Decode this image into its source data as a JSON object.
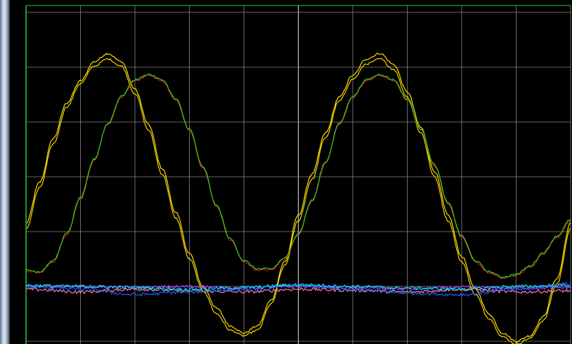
{
  "chart_data": {
    "type": "line",
    "title": "",
    "xlabel": "",
    "ylabel": "",
    "grid": true,
    "legend": "none",
    "xlim": [
      0,
      10
    ],
    "ylim": [
      0,
      6
    ],
    "colors": {
      "background": "#000000",
      "grid": "#8a8a8a",
      "zero_line": "#c8c8c8",
      "border": "#2ecc40"
    },
    "series": [
      {
        "color": "#ffe600",
        "values": [
          [
            0.0,
            2.15
          ],
          [
            0.25,
            2.9
          ],
          [
            0.5,
            3.7
          ],
          [
            0.75,
            4.35
          ],
          [
            1.0,
            4.75
          ],
          [
            1.25,
            5.1
          ],
          [
            1.5,
            5.25
          ],
          [
            1.75,
            5.1
          ],
          [
            2.0,
            4.6
          ],
          [
            2.25,
            3.95
          ],
          [
            2.5,
            3.15
          ],
          [
            2.75,
            2.35
          ],
          [
            3.0,
            1.6
          ],
          [
            3.25,
            1.0
          ],
          [
            3.5,
            0.6
          ],
          [
            3.75,
            0.28
          ],
          [
            4.0,
            0.15
          ],
          [
            4.25,
            0.28
          ],
          [
            4.5,
            0.75
          ],
          [
            4.75,
            1.45
          ],
          [
            5.0,
            2.3
          ],
          [
            5.25,
            3.05
          ],
          [
            5.5,
            3.8
          ],
          [
            5.75,
            4.45
          ],
          [
            6.0,
            4.85
          ],
          [
            6.25,
            5.15
          ],
          [
            6.5,
            5.25
          ],
          [
            6.75,
            5.05
          ],
          [
            7.0,
            4.55
          ],
          [
            7.25,
            3.9
          ],
          [
            7.5,
            3.1
          ],
          [
            7.75,
            2.3
          ],
          [
            8.0,
            1.55
          ],
          [
            8.25,
            0.95
          ],
          [
            8.5,
            0.5
          ],
          [
            8.75,
            0.15
          ],
          [
            9.0,
            0.0
          ],
          [
            9.25,
            0.1
          ],
          [
            9.5,
            0.45
          ],
          [
            9.75,
            1.15
          ],
          [
            10.0,
            2.15
          ]
        ]
      },
      {
        "color": "#ffd700",
        "values": [
          [
            0.0,
            2.05
          ],
          [
            0.25,
            2.8
          ],
          [
            0.5,
            3.6
          ],
          [
            0.75,
            4.28
          ],
          [
            1.0,
            4.7
          ],
          [
            1.25,
            5.02
          ],
          [
            1.5,
            5.15
          ],
          [
            1.75,
            5.02
          ],
          [
            2.0,
            4.52
          ],
          [
            2.25,
            3.85
          ],
          [
            2.5,
            3.05
          ],
          [
            2.75,
            2.25
          ],
          [
            3.0,
            1.5
          ],
          [
            3.25,
            0.92
          ],
          [
            3.5,
            0.5
          ],
          [
            3.75,
            0.2
          ],
          [
            4.0,
            0.1
          ],
          [
            4.25,
            0.2
          ],
          [
            4.5,
            0.68
          ],
          [
            4.75,
            1.38
          ],
          [
            5.0,
            2.2
          ],
          [
            5.25,
            2.95
          ],
          [
            5.5,
            3.72
          ],
          [
            5.75,
            4.38
          ],
          [
            6.0,
            4.78
          ],
          [
            6.25,
            5.06
          ],
          [
            6.5,
            5.15
          ],
          [
            6.75,
            4.96
          ],
          [
            7.0,
            4.46
          ],
          [
            7.25,
            3.8
          ],
          [
            7.5,
            3.0
          ],
          [
            7.75,
            2.2
          ],
          [
            8.0,
            1.45
          ],
          [
            8.25,
            0.85
          ],
          [
            8.5,
            0.42
          ],
          [
            8.75,
            0.08
          ],
          [
            9.0,
            -0.05
          ],
          [
            9.25,
            0.05
          ],
          [
            9.5,
            0.38
          ],
          [
            9.75,
            1.05
          ],
          [
            10.0,
            2.05
          ]
        ]
      },
      {
        "color": "#e81010",
        "values": [
          [
            0.0,
            1.28
          ],
          [
            0.25,
            1.25
          ],
          [
            0.5,
            1.45
          ],
          [
            0.75,
            1.95
          ],
          [
            1.0,
            2.6
          ],
          [
            1.25,
            3.3
          ],
          [
            1.5,
            3.95
          ],
          [
            1.75,
            4.45
          ],
          [
            2.0,
            4.75
          ],
          [
            2.25,
            4.85
          ],
          [
            2.5,
            4.75
          ],
          [
            2.75,
            4.4
          ],
          [
            3.0,
            3.85
          ],
          [
            3.25,
            3.15
          ],
          [
            3.5,
            2.45
          ],
          [
            3.75,
            1.85
          ],
          [
            4.0,
            1.45
          ],
          [
            4.25,
            1.3
          ],
          [
            4.5,
            1.3
          ],
          [
            4.75,
            1.5
          ],
          [
            5.0,
            1.95
          ],
          [
            5.25,
            2.55
          ],
          [
            5.5,
            3.25
          ],
          [
            5.75,
            3.95
          ],
          [
            6.0,
            4.45
          ],
          [
            6.25,
            4.75
          ],
          [
            6.5,
            4.85
          ],
          [
            6.75,
            4.75
          ],
          [
            7.0,
            4.4
          ],
          [
            7.25,
            3.85
          ],
          [
            7.5,
            3.2
          ],
          [
            7.75,
            2.5
          ],
          [
            8.0,
            1.9
          ],
          [
            8.25,
            1.45
          ],
          [
            8.5,
            1.25
          ],
          [
            8.75,
            1.15
          ],
          [
            9.0,
            1.2
          ],
          [
            9.25,
            1.35
          ],
          [
            9.5,
            1.6
          ],
          [
            9.75,
            1.9
          ],
          [
            10.0,
            2.2
          ]
        ]
      },
      {
        "color": "#22dd22",
        "values": [
          [
            0.0,
            1.3
          ],
          [
            0.25,
            1.27
          ],
          [
            0.5,
            1.47
          ],
          [
            0.75,
            1.97
          ],
          [
            1.0,
            2.62
          ],
          [
            1.25,
            3.32
          ],
          [
            1.5,
            3.97
          ],
          [
            1.75,
            4.47
          ],
          [
            2.0,
            4.77
          ],
          [
            2.25,
            4.87
          ],
          [
            2.5,
            4.77
          ],
          [
            2.75,
            4.42
          ],
          [
            3.0,
            3.87
          ],
          [
            3.25,
            3.17
          ],
          [
            3.5,
            2.47
          ],
          [
            3.75,
            1.87
          ],
          [
            4.0,
            1.47
          ],
          [
            4.25,
            1.32
          ],
          [
            4.5,
            1.32
          ],
          [
            4.75,
            1.52
          ],
          [
            5.0,
            1.97
          ],
          [
            5.25,
            2.57
          ],
          [
            5.5,
            3.27
          ],
          [
            5.75,
            3.97
          ],
          [
            6.0,
            4.47
          ],
          [
            6.25,
            4.77
          ],
          [
            6.5,
            4.87
          ],
          [
            6.75,
            4.77
          ],
          [
            7.0,
            4.42
          ],
          [
            7.25,
            3.87
          ],
          [
            7.5,
            3.22
          ],
          [
            7.75,
            2.52
          ],
          [
            8.0,
            1.92
          ],
          [
            8.25,
            1.47
          ],
          [
            8.5,
            1.27
          ],
          [
            8.75,
            1.17
          ],
          [
            9.0,
            1.22
          ],
          [
            9.25,
            1.37
          ],
          [
            9.5,
            1.62
          ],
          [
            9.75,
            1.92
          ],
          [
            10.0,
            2.22
          ]
        ]
      },
      {
        "color": "#ff80c0",
        "values": [
          [
            0.0,
            0.95
          ],
          [
            1.0,
            0.9
          ],
          [
            2.0,
            0.95
          ],
          [
            3.0,
            0.92
          ],
          [
            4.0,
            0.9
          ],
          [
            5.0,
            0.95
          ],
          [
            6.0,
            0.93
          ],
          [
            7.0,
            0.9
          ],
          [
            8.0,
            0.95
          ],
          [
            9.0,
            0.9
          ],
          [
            10.0,
            0.92
          ]
        ]
      },
      {
        "color": "#b040ff",
        "values": [
          [
            0.0,
            1.0
          ],
          [
            1.0,
            1.0
          ],
          [
            2.0,
            0.98
          ],
          [
            3.0,
            1.0
          ],
          [
            4.0,
            0.97
          ],
          [
            5.0,
            1.0
          ],
          [
            6.0,
            0.98
          ],
          [
            7.0,
            0.96
          ],
          [
            8.0,
            0.98
          ],
          [
            9.0,
            0.97
          ],
          [
            10.0,
            0.98
          ]
        ]
      },
      {
        "color": "#2060ff",
        "values": [
          [
            0.0,
            1.0
          ],
          [
            1.0,
            0.95
          ],
          [
            2.0,
            0.85
          ],
          [
            3.0,
            0.9
          ],
          [
            4.0,
            0.95
          ],
          [
            5.0,
            1.02
          ],
          [
            6.0,
            0.95
          ],
          [
            7.0,
            0.88
          ],
          [
            8.0,
            0.85
          ],
          [
            9.0,
            0.95
          ],
          [
            10.0,
            1.05
          ]
        ]
      },
      {
        "color": "#00e5ff",
        "values": [
          [
            0.0,
            1.02
          ],
          [
            1.0,
            1.0
          ],
          [
            2.0,
            0.98
          ],
          [
            3.0,
            0.95
          ],
          [
            4.0,
            0.98
          ],
          [
            5.0,
            1.03
          ],
          [
            6.0,
            1.0
          ],
          [
            7.0,
            0.97
          ],
          [
            8.0,
            0.95
          ],
          [
            9.0,
            1.0
          ],
          [
            10.0,
            1.02
          ]
        ]
      }
    ]
  }
}
